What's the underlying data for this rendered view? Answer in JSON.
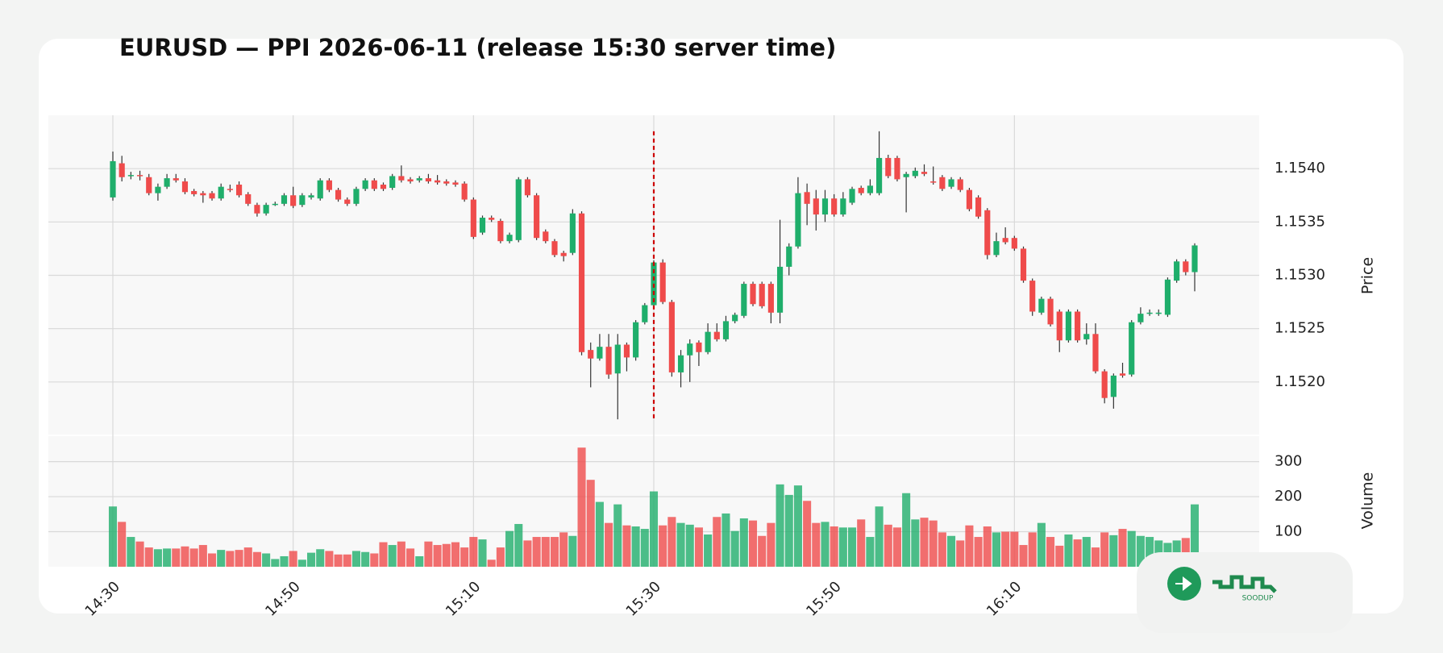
{
  "chart_data": {
    "type": "candlestick",
    "title": "EURUSD — PPI 2026-06-11 (release 15:30 server time)",
    "categories": [
      "14:30",
      null,
      null,
      null,
      null,
      null,
      null,
      null,
      null,
      null,
      null,
      null,
      null,
      null,
      null,
      null,
      null,
      null,
      null,
      null,
      "14:50",
      null,
      null,
      null,
      null,
      null,
      null,
      null,
      null,
      null,
      null,
      null,
      null,
      null,
      null,
      null,
      null,
      null,
      null,
      null,
      "15:10",
      null,
      null,
      null,
      null,
      null,
      null,
      null,
      null,
      null,
      null,
      null,
      null,
      null,
      null,
      null,
      null,
      null,
      null,
      null,
      "15:30",
      null,
      null,
      null,
      null,
      null,
      null,
      null,
      null,
      null,
      null,
      null,
      null,
      null,
      null,
      null,
      null,
      null,
      null,
      null,
      "15:50",
      null,
      null,
      null,
      null,
      null,
      null,
      null,
      null,
      null,
      null,
      null,
      null,
      null,
      null,
      null,
      null,
      null,
      null,
      null,
      "16:10",
      null,
      null,
      null,
      null,
      null,
      null,
      null,
      null,
      null,
      null,
      null,
      null,
      null,
      null,
      null,
      null,
      null,
      null,
      null,
      null
    ],
    "open": [
      1.15373,
      1.15405,
      1.15393,
      1.15394,
      1.15392,
      1.15377,
      1.15383,
      1.15391,
      1.15388,
      1.15379,
      1.15377,
      1.15377,
      1.15372,
      1.15381,
      1.15385,
      1.15376,
      1.15366,
      1.15358,
      1.15366,
      1.15367,
      1.15375,
      1.15366,
      1.15373,
      1.15372,
      1.15389,
      1.1538,
      1.15371,
      1.15367,
      1.15381,
      1.15389,
      1.15385,
      1.15382,
      1.15393,
      1.1539,
      1.15389,
      1.15391,
      1.15389,
      1.15388,
      1.15387,
      1.15386,
      1.15371,
      1.1534,
      1.15354,
      1.15351,
      1.15332,
      1.15333,
      1.1539,
      1.15375,
      1.15341,
      1.15332,
      1.15321,
      1.15321,
      1.15358,
      1.1523,
      1.15222,
      1.15233,
      1.15208,
      1.15235,
      1.15223,
      1.15256,
      1.15272,
      1.15312,
      1.15275,
      1.15209,
      1.15225,
      1.15237,
      1.15228,
      1.15247,
      1.1524,
      1.15257,
      1.15262,
      1.15292,
      1.15292,
      1.15292,
      1.15265,
      1.15308,
      1.15327,
      1.15378,
      1.15372,
      1.15357,
      1.15372,
      1.15357,
      1.15368,
      1.15382,
      1.15377,
      1.15377,
      1.1541,
      1.1541,
      1.15392,
      1.15393,
      1.15397,
      1.15388,
      1.15392,
      1.15383,
      1.1539,
      1.1538,
      1.15373,
      1.15361,
      1.15319,
      1.15335,
      1.15335,
      1.15325,
      1.15295,
      1.15265,
      1.15278,
      1.15266,
      1.15239,
      1.15266,
      1.1524,
      1.15245,
      1.1521,
      1.15186,
      1.15208,
      1.15207,
      1.15256,
      1.15264,
      1.15264,
      1.15263,
      1.15295,
      1.15313,
      1.15303
    ],
    "high": [
      1.15416,
      1.15412,
      1.15397,
      1.15398,
      1.15395,
      1.15386,
      1.15395,
      1.15395,
      1.15391,
      1.15381,
      1.15379,
      1.15379,
      1.15386,
      1.15385,
      1.15388,
      1.15378,
      1.15368,
      1.15368,
      1.15369,
      1.15377,
      1.15383,
      1.15377,
      1.15377,
      1.15391,
      1.15391,
      1.15382,
      1.15373,
      1.15383,
      1.15391,
      1.15391,
      1.15387,
      1.15395,
      1.15403,
      1.15392,
      1.15393,
      1.15395,
      1.15394,
      1.1539,
      1.15389,
      1.15388,
      1.15373,
      1.15356,
      1.15356,
      1.15353,
      1.1534,
      1.15392,
      1.15392,
      1.15377,
      1.15343,
      1.15334,
      1.15323,
      1.15362,
      1.1536,
      1.15237,
      1.15245,
      1.15245,
      1.15245,
      1.15237,
      1.15258,
      1.15274,
      1.15314,
      1.15315,
      1.15277,
      1.1523,
      1.1524,
      1.15239,
      1.15255,
      1.15255,
      1.15262,
      1.15265,
      1.15294,
      1.15294,
      1.15294,
      1.15294,
      1.15352,
      1.1533,
      1.15392,
      1.15386,
      1.1538,
      1.1538,
      1.15376,
      1.15378,
      1.15383,
      1.15384,
      1.1539,
      1.15435,
      1.15413,
      1.15412,
      1.15397,
      1.15401,
      1.15404,
      1.15402,
      1.15394,
      1.15392,
      1.15392,
      1.15382,
      1.15375,
      1.15363,
      1.1534,
      1.15345,
      1.15337,
      1.15327,
      1.15297,
      1.1528,
      1.1528,
      1.15268,
      1.15268,
      1.15268,
      1.15255,
      1.15255,
      1.15212,
      1.15208,
      1.15218,
      1.15258,
      1.1527,
      1.15268,
      1.15268,
      1.15298,
      1.15315,
      1.15315,
      1.1533
    ],
    "low": [
      1.1537,
      1.15388,
      1.1539,
      1.15389,
      1.15375,
      1.1537,
      1.15381,
      1.15387,
      1.15376,
      1.15374,
      1.15368,
      1.1537,
      1.1537,
      1.15378,
      1.15373,
      1.15365,
      1.15355,
      1.15356,
      1.15365,
      1.15365,
      1.15363,
      1.15364,
      1.15371,
      1.1537,
      1.15378,
      1.15369,
      1.15365,
      1.15365,
      1.15379,
      1.15379,
      1.15379,
      1.1538,
      1.15387,
      1.15386,
      1.15387,
      1.15386,
      1.15385,
      1.15384,
      1.15383,
      1.15369,
      1.15334,
      1.15338,
      1.1535,
      1.1533,
      1.1533,
      1.15331,
      1.15373,
      1.15333,
      1.1533,
      1.15317,
      1.15313,
      1.15319,
      1.15225,
      1.15195,
      1.1522,
      1.15203,
      1.15165,
      1.1521,
      1.1522,
      1.15254,
      1.1527,
      1.15273,
      1.15205,
      1.15195,
      1.152,
      1.15215,
      1.15226,
      1.15238,
      1.15238,
      1.15255,
      1.1526,
      1.15271,
      1.15269,
      1.15255,
      1.15255,
      1.153,
      1.15325,
      1.15347,
      1.15342,
      1.1535,
      1.15355,
      1.15355,
      1.15366,
      1.15375,
      1.15375,
      1.15375,
      1.15391,
      1.15388,
      1.15359,
      1.15391,
      1.15393,
      1.15385,
      1.15379,
      1.15381,
      1.15378,
      1.1536,
      1.15353,
      1.15315,
      1.15317,
      1.15329,
      1.15323,
      1.15293,
      1.15262,
      1.15263,
      1.15252,
      1.15228,
      1.15237,
      1.15237,
      1.15235,
      1.15208,
      1.1518,
      1.15175,
      1.15204,
      1.15205,
      1.15254,
      1.15262,
      1.15262,
      1.15261,
      1.15293,
      1.153,
      1.15285
    ],
    "close": [
      1.15407,
      1.15392,
      1.15394,
      1.15393,
      1.15377,
      1.15383,
      1.15391,
      1.15389,
      1.15378,
      1.15376,
      1.15375,
      1.15372,
      1.15383,
      1.1538,
      1.15375,
      1.15367,
      1.15358,
      1.15366,
      1.15367,
      1.15375,
      1.15365,
      1.15375,
      1.15375,
      1.15389,
      1.1538,
      1.15371,
      1.15367,
      1.15381,
      1.15389,
      1.15381,
      1.15381,
      1.15393,
      1.15389,
      1.15388,
      1.15391,
      1.15388,
      1.15387,
      1.15386,
      1.15385,
      1.15371,
      1.15336,
      1.15354,
      1.15352,
      1.15332,
      1.15338,
      1.1539,
      1.15375,
      1.15335,
      1.15332,
      1.15319,
      1.15318,
      1.15358,
      1.15228,
      1.15222,
      1.15233,
      1.15207,
      1.15235,
      1.15223,
      1.15256,
      1.15272,
      1.15312,
      1.15275,
      1.15209,
      1.15225,
      1.15236,
      1.15228,
      1.15247,
      1.1524,
      1.15257,
      1.15263,
      1.15292,
      1.15273,
      1.15271,
      1.15265,
      1.15308,
      1.15327,
      1.15377,
      1.15367,
      1.15357,
      1.15372,
      1.15357,
      1.15372,
      1.15381,
      1.15377,
      1.15384,
      1.1541,
      1.15393,
      1.1539,
      1.15395,
      1.15398,
      1.15395,
      1.15387,
      1.15381,
      1.1539,
      1.1538,
      1.15362,
      1.15355,
      1.15319,
      1.15332,
      1.15331,
      1.15325,
      1.15295,
      1.15266,
      1.15278,
      1.15254,
      1.15239,
      1.15266,
      1.15239,
      1.15245,
      1.1521,
      1.15185,
      1.15206,
      1.15206,
      1.15256,
      1.15264,
      1.15265,
      1.15265,
      1.15296,
      1.15313,
      1.15303,
      1.15328
    ],
    "volume": [
      172,
      128,
      85,
      72,
      55,
      50,
      52,
      52,
      58,
      52,
      62,
      38,
      48,
      45,
      48,
      55,
      42,
      38,
      22,
      30,
      45,
      20,
      40,
      50,
      45,
      35,
      35,
      45,
      42,
      38,
      70,
      62,
      72,
      52,
      30,
      72,
      62,
      65,
      70,
      55,
      85,
      78,
      20,
      55,
      102,
      122,
      75,
      85,
      85,
      85,
      98,
      88,
      340,
      248,
      185,
      125,
      178,
      118,
      115,
      108,
      215,
      118,
      142,
      125,
      120,
      112,
      92,
      142,
      152,
      102,
      138,
      132,
      88,
      125,
      235,
      205,
      232,
      188,
      125,
      128,
      115,
      112,
      112,
      135,
      85,
      172,
      120,
      112,
      210,
      135,
      140,
      132,
      98,
      88,
      75,
      118,
      85,
      115,
      98,
      100,
      100,
      62,
      98,
      125,
      85,
      60,
      92,
      78,
      85,
      55,
      98,
      90,
      108,
      102,
      88,
      85,
      75,
      68,
      75,
      82,
      178
    ],
    "ylim": [
      1.1515,
      1.1545
    ],
    "yticks": [
      {
        "value": 1.152,
        "label": "1.1520"
      },
      {
        "value": 1.1525,
        "label": "1.1525"
      },
      {
        "value": 1.153,
        "label": "1.1530"
      },
      {
        "value": 1.1535,
        "label": "1.1535"
      },
      {
        "value": 1.154,
        "label": "1.1540"
      }
    ],
    "y_label": "Price",
    "volume_ylim": [
      0,
      375
    ],
    "volume_yticks": [
      100,
      200,
      300
    ],
    "volume_label": "Volume",
    "up_color": "#1fae6b",
    "down_color": "#ef4b4b",
    "grid": true,
    "event_line": {
      "at": "15:30",
      "color": "#cc0000"
    }
  },
  "watermark": {
    "text": "SOODUP"
  }
}
